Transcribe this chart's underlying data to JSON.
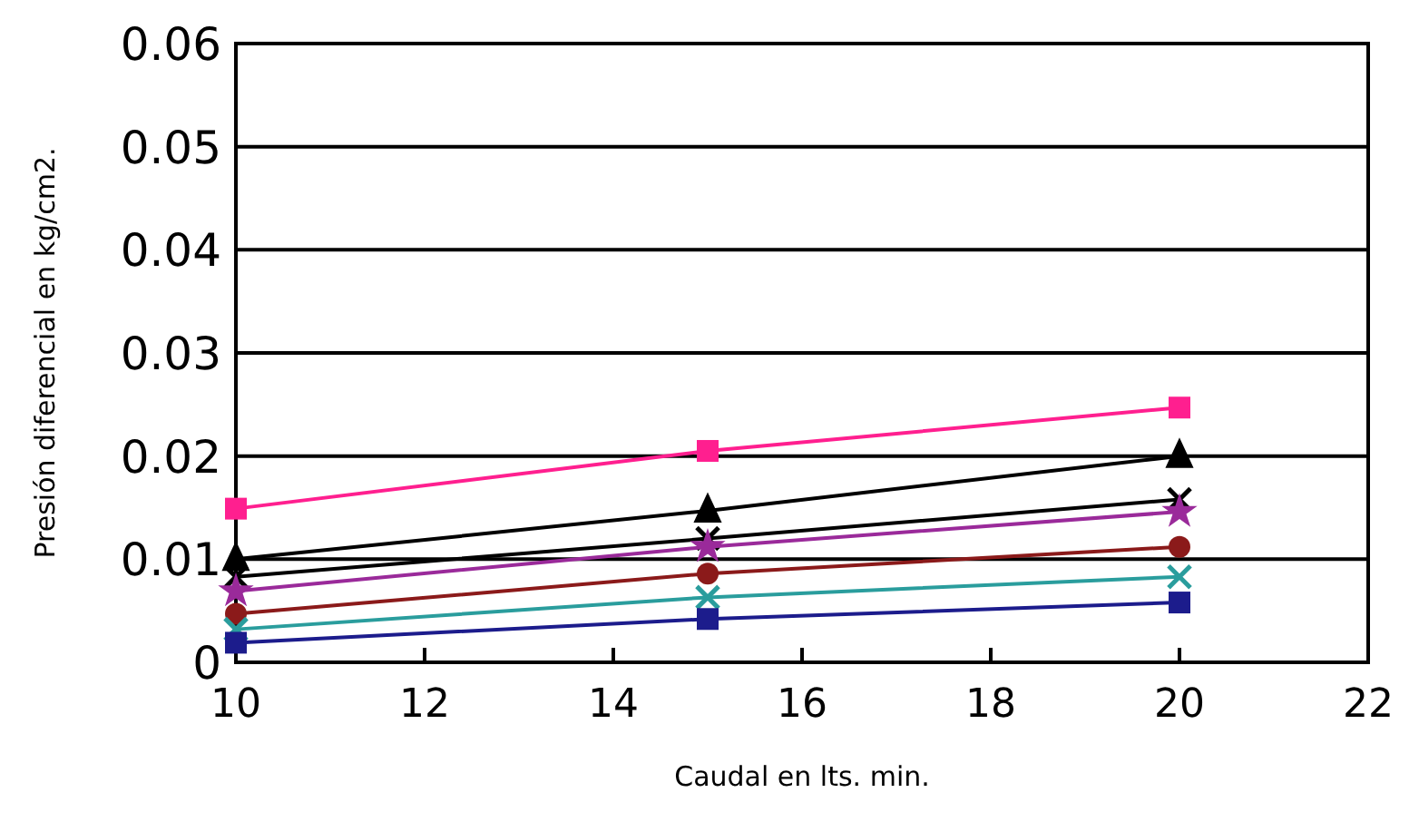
{
  "chart_data": {
    "type": "line",
    "xlabel": "Caudal en lts. min.",
    "ylabel": "Presión diferencial en kg/cm2.",
    "x": [
      10,
      15,
      20
    ],
    "xlim": [
      10,
      22
    ],
    "xticks": [
      10,
      12,
      14,
      16,
      18,
      20,
      22
    ],
    "ylim": [
      0,
      0.06
    ],
    "yticks": [
      0,
      0.01,
      0.02,
      0.03,
      0.04,
      0.05,
      0.06
    ],
    "grid": "y",
    "series": [
      {
        "color": "#ff1f8f",
        "marker": "square",
        "values": [
          0.0149,
          0.0205,
          0.0247
        ]
      },
      {
        "color": "#000000",
        "marker": "triangle",
        "values": [
          0.01,
          0.0147,
          0.02
        ]
      },
      {
        "color": "#000000",
        "marker": "cross",
        "values": [
          0.0083,
          0.012,
          0.0158
        ]
      },
      {
        "color": "#9a2a9a",
        "marker": "star",
        "values": [
          0.0069,
          0.0112,
          0.0146
        ]
      },
      {
        "color": "#8b1a1a",
        "marker": "circle",
        "values": [
          0.0047,
          0.0086,
          0.0112
        ]
      },
      {
        "color": "#2a9d9d",
        "marker": "cross",
        "values": [
          0.0032,
          0.0063,
          0.0083
        ]
      },
      {
        "color": "#1c1c8c",
        "marker": "square",
        "values": [
          0.0019,
          0.0042,
          0.0058
        ]
      }
    ]
  }
}
